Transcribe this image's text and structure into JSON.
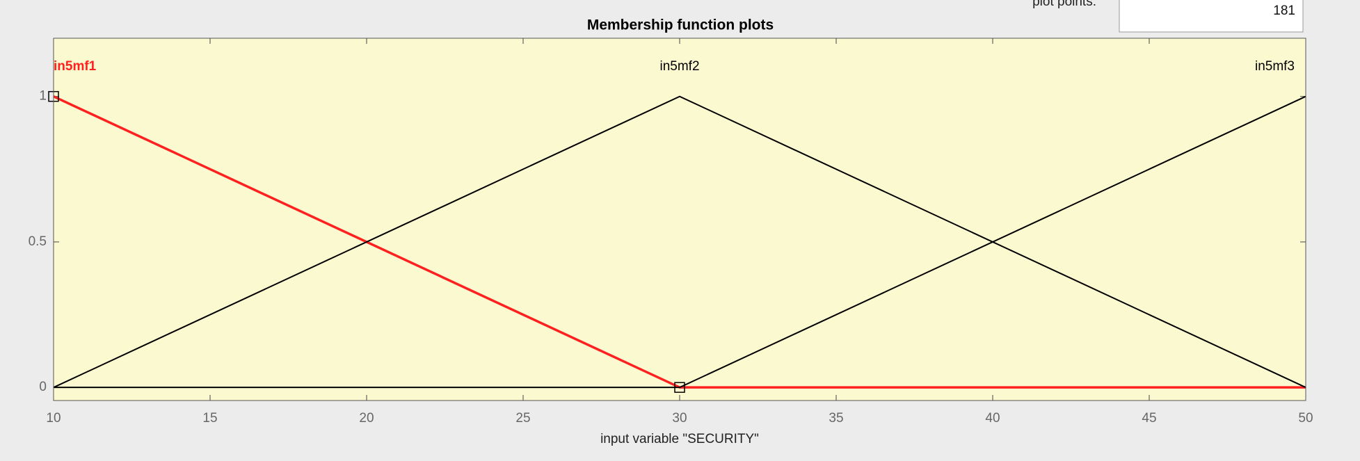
{
  "controls": {
    "plot_points_label": "plot points:",
    "plot_points": 181
  },
  "chart_data": {
    "type": "line",
    "title": "Membership function plots",
    "xlabel": "input variable \"SECURITY\"",
    "xlim": [
      10,
      50
    ],
    "xticks": [
      10,
      15,
      20,
      25,
      30,
      35,
      40,
      45,
      50
    ],
    "ylim": [
      -0.045,
      1.2
    ],
    "yticks": [
      0,
      0.5,
      1
    ],
    "series": [
      {
        "name": "in5mf1",
        "color": "#ff2020",
        "line_width": 3.5,
        "x": [
          10,
          30,
          50
        ],
        "values": [
          1,
          0,
          0
        ]
      },
      {
        "name": "in5mf2",
        "color": "#000000",
        "line_width": 2,
        "x": [
          10,
          30,
          50
        ],
        "values": [
          0,
          1,
          0
        ]
      },
      {
        "name": "in5mf3",
        "color": "#000000",
        "line_width": 2,
        "x": [
          10,
          30,
          50
        ],
        "values": [
          0,
          0,
          1
        ]
      }
    ]
  }
}
